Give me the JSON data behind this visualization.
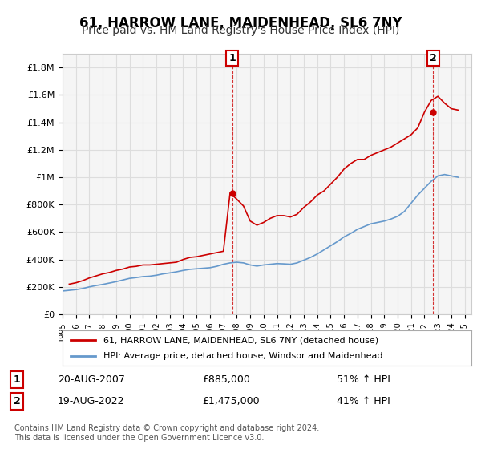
{
  "title": "61, HARROW LANE, MAIDENHEAD, SL6 7NY",
  "subtitle": "Price paid vs. HM Land Registry's House Price Index (HPI)",
  "title_fontsize": 12,
  "subtitle_fontsize": 10,
  "red_label": "61, HARROW LANE, MAIDENHEAD, SL6 7NY (detached house)",
  "blue_label": "HPI: Average price, detached house, Windsor and Maidenhead",
  "annotation1": {
    "num": "1",
    "date": "20-AUG-2007",
    "price": "£885,000",
    "pct": "51% ↑ HPI"
  },
  "annotation2": {
    "num": "2",
    "date": "19-AUG-2022",
    "price": "£1,475,000",
    "pct": "41% ↑ HPI"
  },
  "footer": "Contains HM Land Registry data © Crown copyright and database right 2024.\nThis data is licensed under the Open Government Licence v3.0.",
  "ylim": [
    0,
    1900000
  ],
  "yticks": [
    0,
    200000,
    400000,
    600000,
    800000,
    1000000,
    1200000,
    1400000,
    1600000,
    1800000
  ],
  "ytick_labels": [
    "£0",
    "£200K",
    "£400K",
    "£600K",
    "£800K",
    "£1M",
    "£1.2M",
    "£1.4M",
    "£1.6M",
    "£1.8M"
  ],
  "red_color": "#cc0000",
  "blue_color": "#6699cc",
  "dashed_color": "#cc0000",
  "background_color": "#ffffff",
  "plot_background": "#f5f5f5",
  "grid_color": "#dddddd",
  "years": [
    1995,
    1996,
    1997,
    1998,
    1999,
    2000,
    2001,
    2002,
    2003,
    2004,
    2005,
    2006,
    2007,
    2008,
    2009,
    2010,
    2011,
    2012,
    2013,
    2014,
    2015,
    2016,
    2017,
    2018,
    2019,
    2020,
    2021,
    2022,
    2023,
    2024,
    2025
  ],
  "red_x": [
    1995.5,
    1996.0,
    1996.5,
    1997.0,
    1997.5,
    1998.0,
    1998.5,
    1999.0,
    1999.5,
    2000.0,
    2000.5,
    2001.0,
    2001.5,
    2002.0,
    2002.5,
    2003.0,
    2003.5,
    2004.0,
    2004.5,
    2005.0,
    2005.5,
    2006.0,
    2006.5,
    2007.0,
    2007.5,
    2008.0,
    2008.5,
    2009.0,
    2009.5,
    2010.0,
    2010.5,
    2011.0,
    2011.5,
    2012.0,
    2012.5,
    2013.0,
    2013.5,
    2014.0,
    2014.5,
    2015.0,
    2015.5,
    2016.0,
    2016.5,
    2017.0,
    2017.5,
    2018.0,
    2018.5,
    2019.0,
    2019.5,
    2020.0,
    2020.5,
    2021.0,
    2021.5,
    2022.0,
    2022.5,
    2023.0,
    2023.5,
    2024.0,
    2024.5
  ],
  "red_y": [
    220000,
    230000,
    245000,
    265000,
    280000,
    295000,
    305000,
    320000,
    330000,
    345000,
    350000,
    360000,
    360000,
    365000,
    370000,
    375000,
    380000,
    400000,
    415000,
    420000,
    430000,
    440000,
    450000,
    460000,
    885000,
    840000,
    790000,
    680000,
    650000,
    670000,
    700000,
    720000,
    720000,
    710000,
    730000,
    780000,
    820000,
    870000,
    900000,
    950000,
    1000000,
    1060000,
    1100000,
    1130000,
    1130000,
    1160000,
    1180000,
    1200000,
    1220000,
    1250000,
    1280000,
    1310000,
    1360000,
    1475000,
    1560000,
    1590000,
    1540000,
    1500000,
    1490000
  ],
  "blue_x": [
    1995.0,
    1995.5,
    1996.0,
    1996.5,
    1997.0,
    1997.5,
    1998.0,
    1998.5,
    1999.0,
    1999.5,
    2000.0,
    2000.5,
    2001.0,
    2001.5,
    2002.0,
    2002.5,
    2003.0,
    2003.5,
    2004.0,
    2004.5,
    2005.0,
    2005.5,
    2006.0,
    2006.5,
    2007.0,
    2007.5,
    2008.0,
    2008.5,
    2009.0,
    2009.5,
    2010.0,
    2010.5,
    2011.0,
    2011.5,
    2012.0,
    2012.5,
    2013.0,
    2013.5,
    2014.0,
    2014.5,
    2015.0,
    2015.5,
    2016.0,
    2016.5,
    2017.0,
    2017.5,
    2018.0,
    2018.5,
    2019.0,
    2019.5,
    2020.0,
    2020.5,
    2021.0,
    2021.5,
    2022.0,
    2022.5,
    2023.0,
    2023.5,
    2024.0,
    2024.5
  ],
  "blue_y": [
    170000,
    175000,
    180000,
    188000,
    200000,
    210000,
    218000,
    228000,
    238000,
    250000,
    262000,
    268000,
    275000,
    278000,
    285000,
    295000,
    302000,
    310000,
    320000,
    328000,
    332000,
    336000,
    340000,
    350000,
    365000,
    375000,
    380000,
    375000,
    360000,
    352000,
    360000,
    365000,
    370000,
    368000,
    365000,
    375000,
    395000,
    415000,
    440000,
    470000,
    500000,
    530000,
    565000,
    590000,
    620000,
    640000,
    660000,
    670000,
    680000,
    695000,
    715000,
    750000,
    810000,
    870000,
    920000,
    970000,
    1010000,
    1020000,
    1010000,
    1000000
  ]
}
